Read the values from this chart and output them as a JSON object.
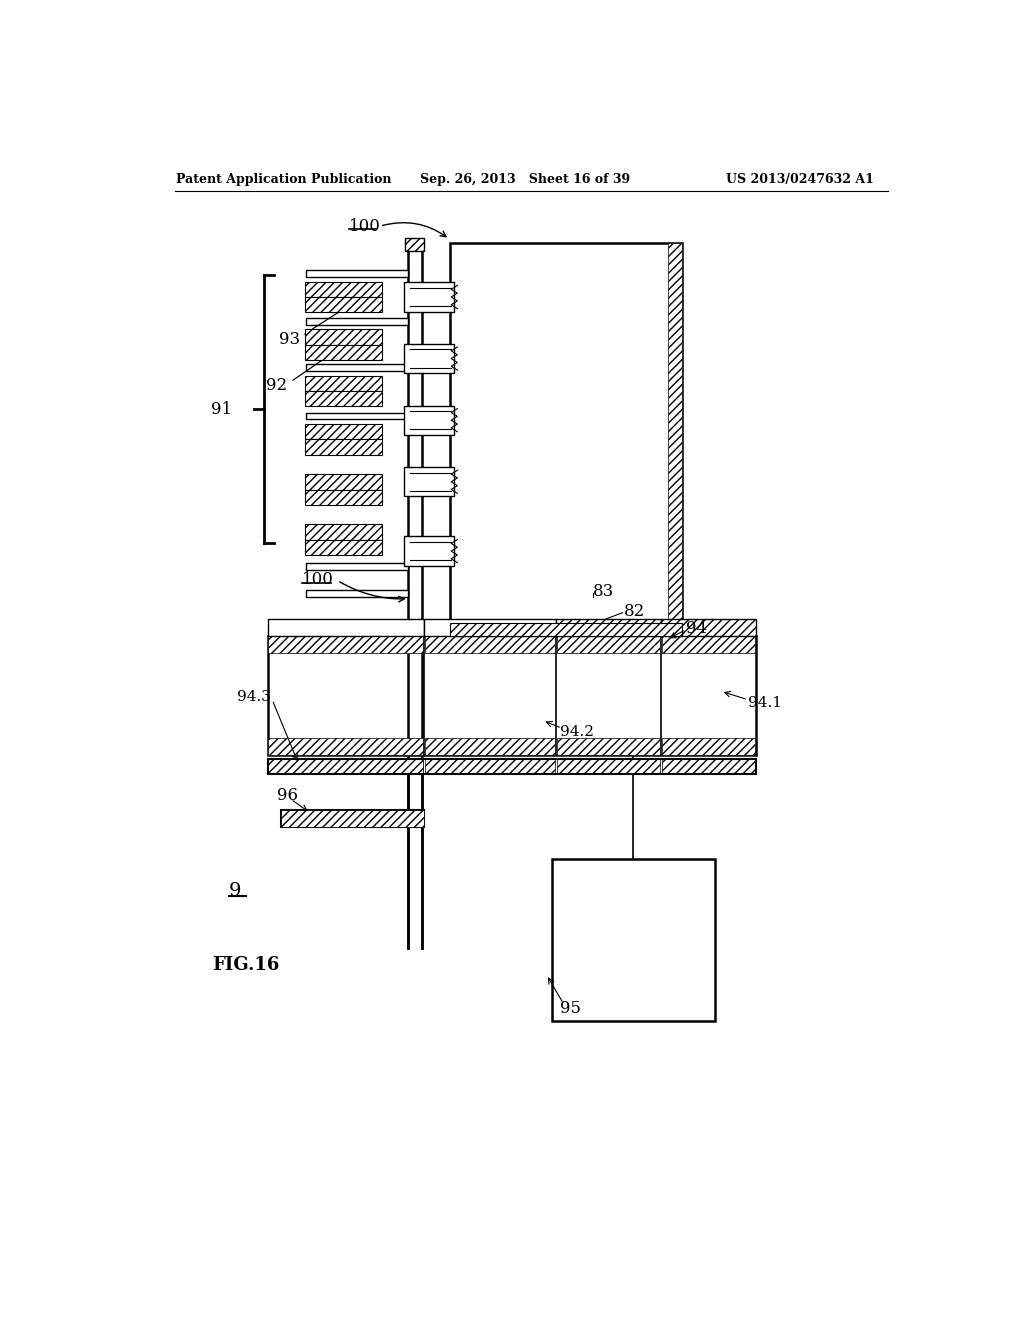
{
  "title_left": "Patent Application Publication",
  "title_mid": "Sep. 26, 2013   Sheet 16 of 39",
  "title_right": "US 2013/0247632 A1",
  "fig_label": "FIG.16",
  "background": "#ffffff",
  "labels": {
    "100_top": "100",
    "100_mid": "100",
    "91": "91",
    "92": "92",
    "93": "93",
    "82": "82",
    "83": "83",
    "94": "94",
    "94_1": "94.1",
    "94_2": "94.2",
    "94_3": "94.3",
    "95": "95",
    "96": "96",
    "9": "9"
  }
}
